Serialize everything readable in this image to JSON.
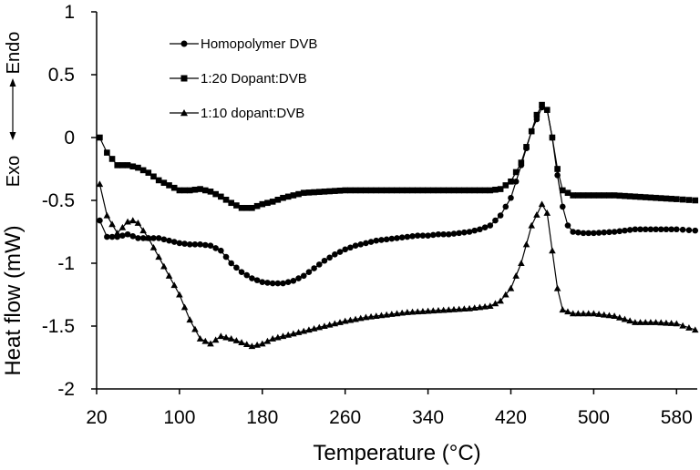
{
  "chart_data": {
    "type": "line",
    "xlabel": "Temperature (°C)",
    "ylabel": "Heat flow (mW)",
    "xlim": [
      20,
      600
    ],
    "ylim": [
      -2,
      1
    ],
    "x_ticks": [
      20,
      100,
      180,
      260,
      340,
      420,
      500,
      580
    ],
    "y_ticks": [
      1,
      0.5,
      0,
      -0.5,
      -1,
      -1.5,
      -2
    ],
    "x_tick_labels": [
      "20",
      "100",
      "180",
      "260",
      "340",
      "420",
      "500",
      "580"
    ],
    "y_tick_labels": [
      "1",
      "0.5",
      "0",
      "-0.5",
      "-1",
      "-1.5",
      "-2"
    ],
    "grid": false,
    "legend_position": "top-left",
    "annotations": {
      "endo": "Endo",
      "exo": "Exo"
    },
    "series": [
      {
        "name": "Homopolymer DVB",
        "marker": "circle",
        "points": [
          [
            23,
            -0.66
          ],
          [
            30,
            -0.79
          ],
          [
            40,
            -0.79
          ],
          [
            50,
            -0.77
          ],
          [
            60,
            -0.8
          ],
          [
            70,
            -0.8
          ],
          [
            80,
            -0.8
          ],
          [
            90,
            -0.82
          ],
          [
            100,
            -0.84
          ],
          [
            110,
            -0.85
          ],
          [
            120,
            -0.85
          ],
          [
            130,
            -0.86
          ],
          [
            140,
            -0.9
          ],
          [
            150,
            -1.0
          ],
          [
            160,
            -1.07
          ],
          [
            170,
            -1.12
          ],
          [
            180,
            -1.15
          ],
          [
            190,
            -1.16
          ],
          [
            200,
            -1.16
          ],
          [
            210,
            -1.14
          ],
          [
            220,
            -1.1
          ],
          [
            230,
            -1.04
          ],
          [
            240,
            -0.98
          ],
          [
            250,
            -0.93
          ],
          [
            260,
            -0.89
          ],
          [
            270,
            -0.86
          ],
          [
            280,
            -0.84
          ],
          [
            290,
            -0.82
          ],
          [
            300,
            -0.81
          ],
          [
            310,
            -0.8
          ],
          [
            320,
            -0.79
          ],
          [
            330,
            -0.78
          ],
          [
            340,
            -0.78
          ],
          [
            350,
            -0.77
          ],
          [
            360,
            -0.77
          ],
          [
            370,
            -0.76
          ],
          [
            380,
            -0.75
          ],
          [
            390,
            -0.73
          ],
          [
            400,
            -0.7
          ],
          [
            410,
            -0.62
          ],
          [
            420,
            -0.48
          ],
          [
            430,
            -0.22
          ],
          [
            440,
            0.05
          ],
          [
            450,
            0.24
          ],
          [
            455,
            0.22
          ],
          [
            460,
            0.0
          ],
          [
            465,
            -0.3
          ],
          [
            470,
            -0.55
          ],
          [
            475,
            -0.7
          ],
          [
            480,
            -0.75
          ],
          [
            490,
            -0.76
          ],
          [
            500,
            -0.76
          ],
          [
            520,
            -0.75
          ],
          [
            540,
            -0.73
          ],
          [
            560,
            -0.73
          ],
          [
            580,
            -0.73
          ],
          [
            598,
            -0.74
          ]
        ]
      },
      {
        "name": "1:20 Dopant:DVB",
        "marker": "square",
        "points": [
          [
            23,
            0.0
          ],
          [
            30,
            -0.12
          ],
          [
            40,
            -0.22
          ],
          [
            50,
            -0.22
          ],
          [
            60,
            -0.24
          ],
          [
            70,
            -0.28
          ],
          [
            80,
            -0.34
          ],
          [
            90,
            -0.38
          ],
          [
            100,
            -0.42
          ],
          [
            110,
            -0.42
          ],
          [
            120,
            -0.41
          ],
          [
            130,
            -0.43
          ],
          [
            140,
            -0.47
          ],
          [
            150,
            -0.52
          ],
          [
            160,
            -0.56
          ],
          [
            170,
            -0.56
          ],
          [
            180,
            -0.53
          ],
          [
            190,
            -0.51
          ],
          [
            200,
            -0.48
          ],
          [
            210,
            -0.46
          ],
          [
            220,
            -0.44
          ],
          [
            240,
            -0.43
          ],
          [
            260,
            -0.42
          ],
          [
            280,
            -0.42
          ],
          [
            300,
            -0.42
          ],
          [
            320,
            -0.42
          ],
          [
            340,
            -0.42
          ],
          [
            360,
            -0.42
          ],
          [
            380,
            -0.42
          ],
          [
            400,
            -0.42
          ],
          [
            410,
            -0.41
          ],
          [
            420,
            -0.35
          ],
          [
            430,
            -0.2
          ],
          [
            440,
            0.05
          ],
          [
            445,
            0.18
          ],
          [
            450,
            0.26
          ],
          [
            455,
            0.22
          ],
          [
            460,
            0.0
          ],
          [
            465,
            -0.25
          ],
          [
            470,
            -0.42
          ],
          [
            480,
            -0.46
          ],
          [
            500,
            -0.46
          ],
          [
            520,
            -0.46
          ],
          [
            540,
            -0.47
          ],
          [
            560,
            -0.48
          ],
          [
            580,
            -0.49
          ],
          [
            598,
            -0.5
          ]
        ]
      },
      {
        "name": "1:10 dopant:DVB",
        "marker": "triangle",
        "points": [
          [
            23,
            -0.37
          ],
          [
            30,
            -0.62
          ],
          [
            40,
            -0.76
          ],
          [
            50,
            -0.67
          ],
          [
            55,
            -0.66
          ],
          [
            60,
            -0.68
          ],
          [
            70,
            -0.8
          ],
          [
            80,
            -0.95
          ],
          [
            90,
            -1.1
          ],
          [
            100,
            -1.25
          ],
          [
            110,
            -1.45
          ],
          [
            120,
            -1.6
          ],
          [
            130,
            -1.64
          ],
          [
            140,
            -1.58
          ],
          [
            150,
            -1.6
          ],
          [
            160,
            -1.63
          ],
          [
            170,
            -1.66
          ],
          [
            180,
            -1.64
          ],
          [
            190,
            -1.6
          ],
          [
            200,
            -1.58
          ],
          [
            220,
            -1.54
          ],
          [
            240,
            -1.5
          ],
          [
            260,
            -1.46
          ],
          [
            280,
            -1.43
          ],
          [
            300,
            -1.41
          ],
          [
            320,
            -1.39
          ],
          [
            340,
            -1.38
          ],
          [
            360,
            -1.37
          ],
          [
            380,
            -1.36
          ],
          [
            400,
            -1.34
          ],
          [
            410,
            -1.3
          ],
          [
            420,
            -1.2
          ],
          [
            430,
            -1.0
          ],
          [
            440,
            -0.7
          ],
          [
            450,
            -0.53
          ],
          [
            455,
            -0.6
          ],
          [
            460,
            -0.9
          ],
          [
            465,
            -1.2
          ],
          [
            470,
            -1.37
          ],
          [
            480,
            -1.4
          ],
          [
            500,
            -1.4
          ],
          [
            520,
            -1.42
          ],
          [
            540,
            -1.47
          ],
          [
            560,
            -1.47
          ],
          [
            580,
            -1.48
          ],
          [
            598,
            -1.53
          ]
        ]
      }
    ]
  }
}
